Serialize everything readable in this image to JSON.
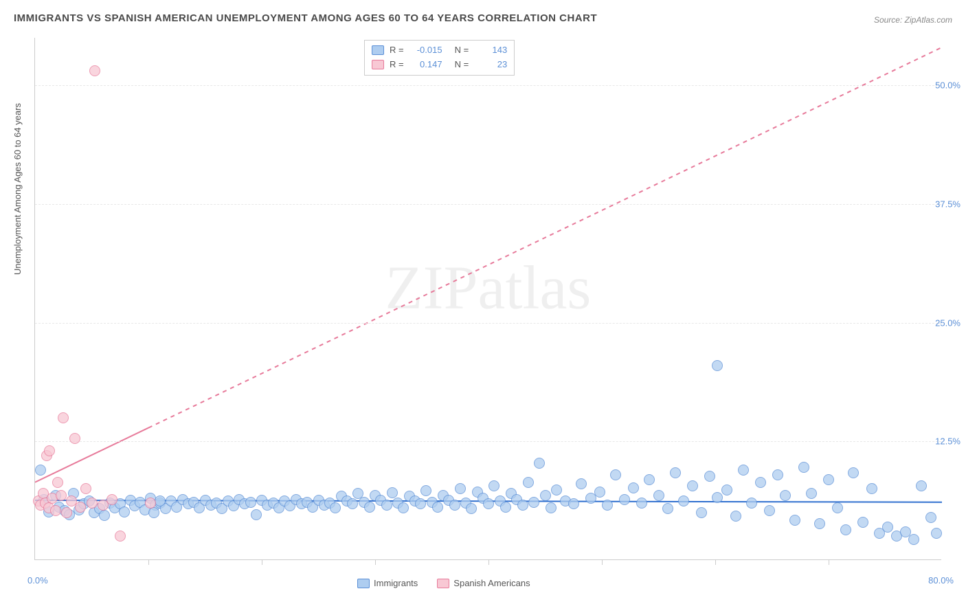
{
  "title": "IMMIGRANTS VS SPANISH AMERICAN UNEMPLOYMENT AMONG AGES 60 TO 64 YEARS CORRELATION CHART",
  "source": "Source: ZipAtlas.com",
  "watermark": "ZIPatlas",
  "chart": {
    "type": "scatter",
    "background_color": "#ffffff",
    "grid_color": "#e8e8e8",
    "axis_color": "#cccccc",
    "y_axis_label": "Unemployment Among Ages 60 to 64 years",
    "label_fontsize": 13,
    "label_color": "#555555",
    "tick_label_color": "#5b8fd6",
    "xlim": [
      0,
      80
    ],
    "ylim": [
      0,
      55
    ],
    "y_ticks": [
      12.5,
      25.0,
      37.5,
      50.0
    ],
    "y_tick_labels": [
      "12.5%",
      "25.0%",
      "37.5%",
      "50.0%"
    ],
    "x_origin_label": "0.0%",
    "x_max_label": "80.0%",
    "x_tick_positions": [
      10,
      20,
      30,
      40,
      50,
      60,
      70
    ],
    "marker_radius": 8,
    "marker_stroke_width": 1.2,
    "series": [
      {
        "name": "Immigrants",
        "fill_color": "#aecdf0",
        "stroke_color": "#5b8fd6",
        "r": -0.015,
        "n": 143,
        "trend": {
          "x1": 0,
          "y1": 6.3,
          "x2": 80,
          "y2": 6.1,
          "color": "#2f6fcf",
          "width": 2,
          "dash": "none"
        },
        "points": [
          [
            0.5,
            9.5
          ],
          [
            0.8,
            6.4
          ],
          [
            1.2,
            5.1
          ],
          [
            1.8,
            6.8
          ],
          [
            2.1,
            5.6
          ],
          [
            2.6,
            5.2
          ],
          [
            3.0,
            4.8
          ],
          [
            3.4,
            7.0
          ],
          [
            3.9,
            5.3
          ],
          [
            4.3,
            5.9
          ],
          [
            4.8,
            6.2
          ],
          [
            5.2,
            5.0
          ],
          [
            5.7,
            5.4
          ],
          [
            6.1,
            4.7
          ],
          [
            6.6,
            6.0
          ],
          [
            7.0,
            5.5
          ],
          [
            7.5,
            5.9
          ],
          [
            7.9,
            5.1
          ],
          [
            8.4,
            6.3
          ],
          [
            8.8,
            5.7
          ],
          [
            9.3,
            6.1
          ],
          [
            9.7,
            5.3
          ],
          [
            10.2,
            6.5
          ],
          [
            10.6,
            5.8
          ],
          [
            11.0,
            6.0
          ],
          [
            11.5,
            5.4
          ],
          [
            12.0,
            6.2
          ],
          [
            12.5,
            5.6
          ],
          [
            13.0,
            6.4
          ],
          [
            13.5,
            5.9
          ],
          [
            14.0,
            6.1
          ],
          [
            14.5,
            5.5
          ],
          [
            15.0,
            6.3
          ],
          [
            15.5,
            5.8
          ],
          [
            16.0,
            6.0
          ],
          [
            16.5,
            5.4
          ],
          [
            17.0,
            6.2
          ],
          [
            17.5,
            5.7
          ],
          [
            18.0,
            6.4
          ],
          [
            18.5,
            5.9
          ],
          [
            19.0,
            6.1
          ],
          [
            19.5,
            4.8
          ],
          [
            20.0,
            6.3
          ],
          [
            20.5,
            5.8
          ],
          [
            21.0,
            6.0
          ],
          [
            21.5,
            5.5
          ],
          [
            22.0,
            6.2
          ],
          [
            22.5,
            5.7
          ],
          [
            23.0,
            6.4
          ],
          [
            23.5,
            5.9
          ],
          [
            24.0,
            6.1
          ],
          [
            24.5,
            5.6
          ],
          [
            25.0,
            6.3
          ],
          [
            25.5,
            5.8
          ],
          [
            26.0,
            6.0
          ],
          [
            26.5,
            5.5
          ],
          [
            27.0,
            6.7
          ],
          [
            27.5,
            6.2
          ],
          [
            28.0,
            5.9
          ],
          [
            28.5,
            7.0
          ],
          [
            29.0,
            6.1
          ],
          [
            29.5,
            5.6
          ],
          [
            30.0,
            6.8
          ],
          [
            30.5,
            6.3
          ],
          [
            31.0,
            5.8
          ],
          [
            31.5,
            7.1
          ],
          [
            32.0,
            6.0
          ],
          [
            32.5,
            5.5
          ],
          [
            33.0,
            6.7
          ],
          [
            33.5,
            6.2
          ],
          [
            34.0,
            5.9
          ],
          [
            34.5,
            7.3
          ],
          [
            35.0,
            6.1
          ],
          [
            35.5,
            5.6
          ],
          [
            36.0,
            6.8
          ],
          [
            36.5,
            6.3
          ],
          [
            37.0,
            5.8
          ],
          [
            37.5,
            7.5
          ],
          [
            38.0,
            6.0
          ],
          [
            38.5,
            5.4
          ],
          [
            39.0,
            7.2
          ],
          [
            39.5,
            6.5
          ],
          [
            40.0,
            5.9
          ],
          [
            40.5,
            7.8
          ],
          [
            41.0,
            6.2
          ],
          [
            41.5,
            5.6
          ],
          [
            42.0,
            7.0
          ],
          [
            42.5,
            6.4
          ],
          [
            43.0,
            5.8
          ],
          [
            43.5,
            8.2
          ],
          [
            44.0,
            6.1
          ],
          [
            44.5,
            10.2
          ],
          [
            45.0,
            6.8
          ],
          [
            45.5,
            5.5
          ],
          [
            46.0,
            7.4
          ],
          [
            46.8,
            6.2
          ],
          [
            47.5,
            5.9
          ],
          [
            48.2,
            8.0
          ],
          [
            49.0,
            6.5
          ],
          [
            49.8,
            7.2
          ],
          [
            50.5,
            5.8
          ],
          [
            51.2,
            9.0
          ],
          [
            52.0,
            6.4
          ],
          [
            52.8,
            7.6
          ],
          [
            53.5,
            6.0
          ],
          [
            54.2,
            8.5
          ],
          [
            55.0,
            6.8
          ],
          [
            55.8,
            5.4
          ],
          [
            56.5,
            9.2
          ],
          [
            57.2,
            6.2
          ],
          [
            58.0,
            7.8
          ],
          [
            58.8,
            5.0
          ],
          [
            59.5,
            8.8
          ],
          [
            60.2,
            6.6
          ],
          [
            60.2,
            20.5
          ],
          [
            61.0,
            7.4
          ],
          [
            61.8,
            4.6
          ],
          [
            62.5,
            9.5
          ],
          [
            63.2,
            6.0
          ],
          [
            64.0,
            8.2
          ],
          [
            64.8,
            5.2
          ],
          [
            65.5,
            9.0
          ],
          [
            66.2,
            6.8
          ],
          [
            67.0,
            4.2
          ],
          [
            67.8,
            9.8
          ],
          [
            68.5,
            7.0
          ],
          [
            69.2,
            3.8
          ],
          [
            70.0,
            8.5
          ],
          [
            70.8,
            5.5
          ],
          [
            71.5,
            3.2
          ],
          [
            72.2,
            9.2
          ],
          [
            73.0,
            4.0
          ],
          [
            73.8,
            7.5
          ],
          [
            74.5,
            2.8
          ],
          [
            75.2,
            3.5
          ],
          [
            76.0,
            2.5
          ],
          [
            76.8,
            3.0
          ],
          [
            77.5,
            2.2
          ],
          [
            78.2,
            7.8
          ],
          [
            79.0,
            4.5
          ],
          [
            79.5,
            2.8
          ],
          [
            11.0,
            6.2
          ],
          [
            10.5,
            5.0
          ]
        ]
      },
      {
        "name": "Spanish Americans",
        "fill_color": "#f8c8d4",
        "stroke_color": "#e77a9a",
        "r": 0.147,
        "n": 23,
        "trend": {
          "x1": 0,
          "y1": 8.2,
          "x2": 80,
          "y2": 54.0,
          "color": "#e77a9a",
          "width": 2,
          "dash": "6,6",
          "solid_until_x": 10
        },
        "points": [
          [
            0.3,
            6.2
          ],
          [
            0.5,
            5.8
          ],
          [
            0.7,
            7.0
          ],
          [
            0.9,
            6.0
          ],
          [
            1.0,
            11.0
          ],
          [
            1.2,
            5.5
          ],
          [
            1.3,
            11.5
          ],
          [
            1.5,
            6.5
          ],
          [
            1.8,
            5.2
          ],
          [
            2.0,
            8.2
          ],
          [
            2.3,
            6.8
          ],
          [
            2.5,
            15.0
          ],
          [
            2.8,
            5.0
          ],
          [
            3.2,
            6.2
          ],
          [
            3.5,
            12.8
          ],
          [
            4.0,
            5.6
          ],
          [
            4.5,
            7.5
          ],
          [
            5.0,
            6.0
          ],
          [
            5.3,
            51.5
          ],
          [
            6.0,
            5.8
          ],
          [
            6.8,
            6.4
          ],
          [
            7.5,
            2.5
          ],
          [
            10.2,
            6.0
          ]
        ]
      }
    ]
  },
  "stats_legend": {
    "rows": [
      {
        "swatch": "#aecdf0",
        "border": "#5b8fd6",
        "r_label": "R =",
        "r_value": "-0.015",
        "n_label": "N =",
        "n_value": "143"
      },
      {
        "swatch": "#f8c8d4",
        "border": "#e77a9a",
        "r_label": "R =",
        "r_value": "0.147",
        "n_label": "N =",
        "n_value": "23"
      }
    ]
  },
  "series_legend": {
    "items": [
      {
        "swatch": "#aecdf0",
        "border": "#5b8fd6",
        "label": "Immigrants"
      },
      {
        "swatch": "#f8c8d4",
        "border": "#e77a9a",
        "label": "Spanish Americans"
      }
    ]
  }
}
